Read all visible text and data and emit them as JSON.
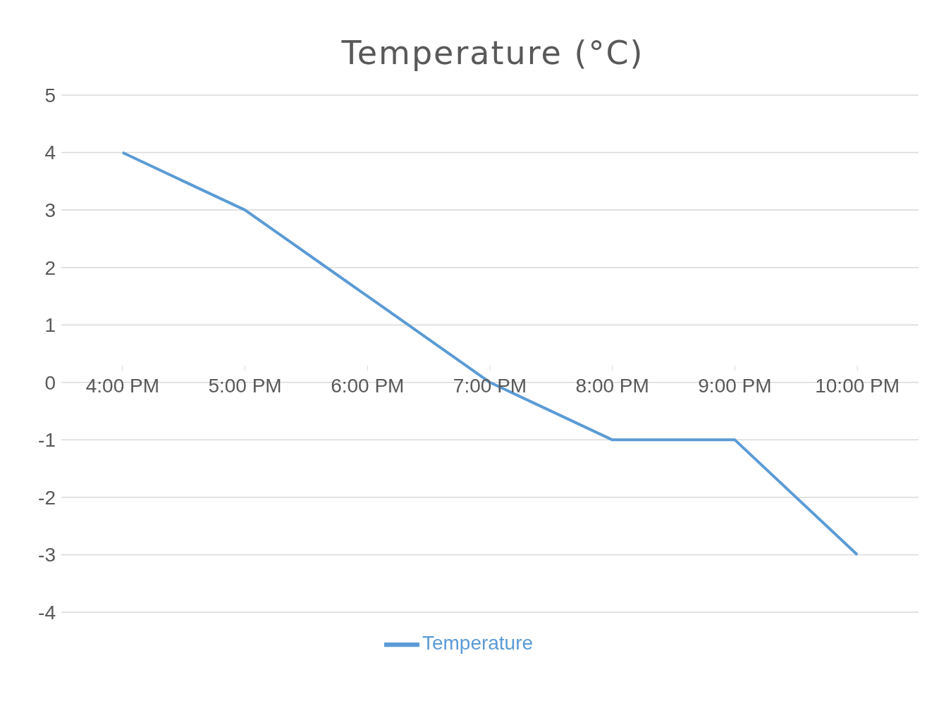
{
  "chart_data": {
    "type": "line",
    "title": "Temperature (°C)",
    "categories": [
      "4:00 PM",
      "5:00 PM",
      "6:00 PM",
      "7:00 PM",
      "8:00 PM",
      "9:00 PM",
      "10:00 PM"
    ],
    "series": [
      {
        "name": "Temperature",
        "color": "#5b9bd5",
        "values": [
          4,
          3,
          1.5,
          0,
          -1,
          -1,
          -3
        ]
      }
    ],
    "ylim": [
      -4,
      5
    ],
    "yticks": [
      -4,
      -3,
      -2,
      -1,
      0,
      1,
      2,
      3,
      4,
      5
    ],
    "grid": "y",
    "legend": "bottom",
    "marker": "none",
    "line_style": "solid"
  }
}
